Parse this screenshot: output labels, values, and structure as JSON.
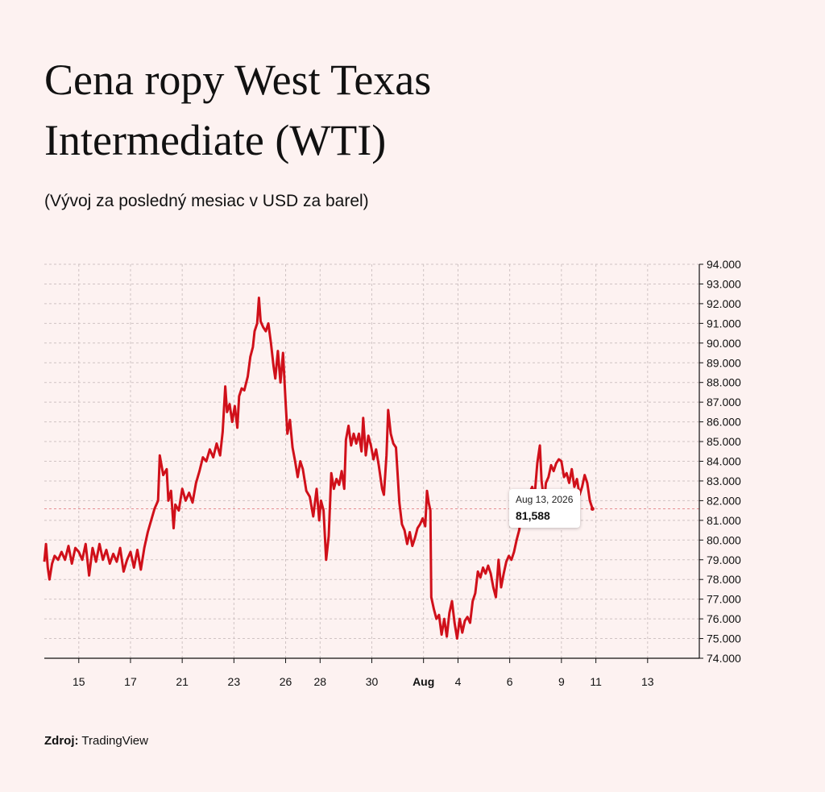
{
  "title": "Cena ropy West Texas Intermediate (WTI)",
  "subtitle": "(Vývoj za posledný mesiac v USD za barel)",
  "source": {
    "label": "Zdroj:",
    "name": "TradingView"
  },
  "tooltip": {
    "date": "Aug 13, 2026",
    "value": "81,588"
  },
  "colors": {
    "background": "#fdf2f1",
    "line": "#d0101a",
    "grid": "#cfc3c3",
    "axis": "#111111"
  },
  "chart_data": {
    "type": "line",
    "ylim": [
      74,
      94
    ],
    "y_ticks": [
      94,
      93,
      92,
      91,
      90,
      89,
      88,
      87,
      86,
      85,
      84,
      83,
      82,
      81,
      80,
      79,
      78,
      77,
      76,
      75,
      74
    ],
    "y_tick_labels": [
      "94.000",
      "93.000",
      "92.000",
      "91.000",
      "90.000",
      "89.000",
      "88.000",
      "87.000",
      "86.000",
      "85.000",
      "84.000",
      "83.000",
      "82.000",
      "81.000",
      "80.000",
      "79.000",
      "78.000",
      "77.000",
      "76.000",
      "75.000",
      "74.000"
    ],
    "x_ticks": [
      {
        "label": "15",
        "x": 1
      },
      {
        "label": "17",
        "x": 4
      },
      {
        "label": "21",
        "x": 7
      },
      {
        "label": "23",
        "x": 10
      },
      {
        "label": "26",
        "x": 13
      },
      {
        "label": "28",
        "x": 15
      },
      {
        "label": "30",
        "x": 18
      },
      {
        "label": "Aug",
        "x": 21,
        "bold": true
      },
      {
        "label": "4",
        "x": 23
      },
      {
        "label": "6",
        "x": 26
      },
      {
        "label": "9",
        "x": 29
      },
      {
        "label": "11",
        "x": 31
      },
      {
        "label": "13",
        "x": 34
      }
    ],
    "xlim": [
      -1,
      37
    ],
    "grid": true,
    "reference_line": 81.588,
    "series": [
      {
        "points": [
          [
            -1,
            78.9
          ],
          [
            -0.9,
            79.8
          ],
          [
            -0.8,
            78.6
          ],
          [
            -0.7,
            78.0
          ],
          [
            -0.55,
            78.8
          ],
          [
            -0.4,
            79.2
          ],
          [
            -0.2,
            79.0
          ],
          [
            0,
            79.4
          ],
          [
            0.2,
            79.0
          ],
          [
            0.4,
            79.7
          ],
          [
            0.6,
            78.8
          ],
          [
            0.8,
            79.6
          ],
          [
            1,
            79.4
          ],
          [
            1.2,
            79.0
          ],
          [
            1.4,
            79.8
          ],
          [
            1.6,
            78.2
          ],
          [
            1.8,
            79.6
          ],
          [
            2,
            78.9
          ],
          [
            2.2,
            79.8
          ],
          [
            2.4,
            79.0
          ],
          [
            2.6,
            79.5
          ],
          [
            2.8,
            78.8
          ],
          [
            3,
            79.3
          ],
          [
            3.2,
            78.9
          ],
          [
            3.4,
            79.6
          ],
          [
            3.6,
            78.4
          ],
          [
            3.8,
            79.0
          ],
          [
            4,
            79.4
          ],
          [
            4.2,
            78.6
          ],
          [
            4.4,
            79.5
          ],
          [
            4.6,
            78.5
          ],
          [
            4.8,
            79.6
          ],
          [
            5,
            80.4
          ],
          [
            5.2,
            81.0
          ],
          [
            5.4,
            81.6
          ],
          [
            5.6,
            82.0
          ],
          [
            5.7,
            84.3
          ],
          [
            5.9,
            83.3
          ],
          [
            6.1,
            83.6
          ],
          [
            6.2,
            82.0
          ],
          [
            6.35,
            82.5
          ],
          [
            6.5,
            80.6
          ],
          [
            6.6,
            81.8
          ],
          [
            6.8,
            81.5
          ],
          [
            7,
            82.6
          ],
          [
            7.2,
            82.0
          ],
          [
            7.4,
            82.4
          ],
          [
            7.6,
            81.9
          ],
          [
            7.8,
            82.9
          ],
          [
            8,
            83.5
          ],
          [
            8.2,
            84.2
          ],
          [
            8.4,
            84.0
          ],
          [
            8.6,
            84.6
          ],
          [
            8.8,
            84.2
          ],
          [
            9,
            84.9
          ],
          [
            9.2,
            84.3
          ],
          [
            9.35,
            85.5
          ],
          [
            9.5,
            87.8
          ],
          [
            9.6,
            86.5
          ],
          [
            9.75,
            86.9
          ],
          [
            9.9,
            86.0
          ],
          [
            10.05,
            86.8
          ],
          [
            10.2,
            85.7
          ],
          [
            10.3,
            87.3
          ],
          [
            10.45,
            87.7
          ],
          [
            10.6,
            87.6
          ],
          [
            10.8,
            88.3
          ],
          [
            10.95,
            89.3
          ],
          [
            11.1,
            89.8
          ],
          [
            11.2,
            90.6
          ],
          [
            11.35,
            91.0
          ],
          [
            11.45,
            92.3
          ],
          [
            11.55,
            91.1
          ],
          [
            11.7,
            90.8
          ],
          [
            11.85,
            90.6
          ],
          [
            12,
            91.0
          ],
          [
            12.15,
            90.0
          ],
          [
            12.3,
            88.8
          ],
          [
            12.4,
            88.2
          ],
          [
            12.55,
            89.6
          ],
          [
            12.7,
            88.0
          ],
          [
            12.85,
            89.5
          ],
          [
            13,
            87.0
          ],
          [
            13.1,
            85.4
          ],
          [
            13.25,
            86.1
          ],
          [
            13.4,
            84.7
          ],
          [
            13.55,
            84.0
          ],
          [
            13.7,
            83.2
          ],
          [
            13.85,
            84.0
          ],
          [
            14,
            83.6
          ],
          [
            14.2,
            82.5
          ],
          [
            14.4,
            82.2
          ],
          [
            14.6,
            81.2
          ],
          [
            14.8,
            82.6
          ],
          [
            14.95,
            81.0
          ],
          [
            15.05,
            82.0
          ],
          [
            15.2,
            81.5
          ],
          [
            15.35,
            79.0
          ],
          [
            15.5,
            80.2
          ],
          [
            15.65,
            83.4
          ],
          [
            15.8,
            82.6
          ],
          [
            15.95,
            83.1
          ],
          [
            16.1,
            82.8
          ],
          [
            16.25,
            83.5
          ],
          [
            16.4,
            82.6
          ],
          [
            16.5,
            85.1
          ],
          [
            16.65,
            85.8
          ],
          [
            16.8,
            84.8
          ],
          [
            16.95,
            85.4
          ],
          [
            17.1,
            84.9
          ],
          [
            17.25,
            85.4
          ],
          [
            17.4,
            84.5
          ],
          [
            17.5,
            86.2
          ],
          [
            17.65,
            84.3
          ],
          [
            17.8,
            85.3
          ],
          [
            17.95,
            84.8
          ],
          [
            18.1,
            84.1
          ],
          [
            18.25,
            84.6
          ],
          [
            18.4,
            83.8
          ],
          [
            18.6,
            82.6
          ],
          [
            18.7,
            82.3
          ],
          [
            18.85,
            84.3
          ],
          [
            18.95,
            86.6
          ],
          [
            19.1,
            85.4
          ],
          [
            19.25,
            84.9
          ],
          [
            19.4,
            84.7
          ],
          [
            19.6,
            81.9
          ],
          [
            19.75,
            80.8
          ],
          [
            19.9,
            80.5
          ],
          [
            20.05,
            79.8
          ],
          [
            20.2,
            80.4
          ],
          [
            20.35,
            79.7
          ],
          [
            20.5,
            80.1
          ],
          [
            20.65,
            80.6
          ],
          [
            20.8,
            80.8
          ],
          [
            20.95,
            81.1
          ],
          [
            21.1,
            80.7
          ],
          [
            21.2,
            82.5
          ],
          [
            21.3,
            81.9
          ],
          [
            21.4,
            81.5
          ],
          [
            21.45,
            77.1
          ],
          [
            21.6,
            76.5
          ],
          [
            21.75,
            76.0
          ],
          [
            21.9,
            76.2
          ],
          [
            22.05,
            75.2
          ],
          [
            22.2,
            76.0
          ],
          [
            22.35,
            75.1
          ],
          [
            22.5,
            76.3
          ],
          [
            22.65,
            76.9
          ],
          [
            22.8,
            75.8
          ],
          [
            22.95,
            75.0
          ],
          [
            23.1,
            76.0
          ],
          [
            23.25,
            75.3
          ],
          [
            23.4,
            75.9
          ],
          [
            23.55,
            76.1
          ],
          [
            23.7,
            75.8
          ],
          [
            23.85,
            76.9
          ],
          [
            24,
            77.3
          ],
          [
            24.15,
            78.4
          ],
          [
            24.3,
            78.1
          ],
          [
            24.45,
            78.6
          ],
          [
            24.6,
            78.3
          ],
          [
            24.75,
            78.7
          ],
          [
            24.9,
            78.3
          ],
          [
            25.05,
            77.6
          ],
          [
            25.2,
            77.1
          ],
          [
            25.35,
            79.0
          ],
          [
            25.5,
            77.6
          ],
          [
            25.65,
            78.3
          ],
          [
            25.8,
            78.9
          ],
          [
            25.95,
            79.2
          ],
          [
            26.1,
            79.0
          ],
          [
            26.25,
            79.4
          ],
          [
            26.4,
            80.0
          ],
          [
            26.55,
            80.5
          ],
          [
            26.7,
            81.3
          ],
          [
            26.85,
            82.2
          ],
          [
            27,
            82.5
          ],
          [
            27.15,
            82.4
          ],
          [
            27.3,
            82.7
          ],
          [
            27.45,
            82.3
          ],
          [
            27.6,
            83.9
          ],
          [
            27.75,
            84.8
          ],
          [
            27.85,
            83.0
          ],
          [
            28,
            81.9
          ],
          [
            28.1,
            82.9
          ],
          [
            28.25,
            83.2
          ],
          [
            28.4,
            83.8
          ],
          [
            28.55,
            83.5
          ],
          [
            28.7,
            83.9
          ],
          [
            28.85,
            84.1
          ],
          [
            29,
            84.0
          ],
          [
            29.15,
            83.2
          ],
          [
            29.3,
            83.4
          ],
          [
            29.45,
            82.9
          ],
          [
            29.6,
            83.6
          ],
          [
            29.75,
            82.7
          ],
          [
            29.9,
            83.1
          ],
          [
            30.05,
            82.3
          ],
          [
            30.2,
            82.7
          ],
          [
            30.35,
            83.3
          ],
          [
            30.5,
            82.9
          ],
          [
            30.65,
            82.0
          ],
          [
            30.8,
            81.588
          ]
        ]
      }
    ]
  }
}
